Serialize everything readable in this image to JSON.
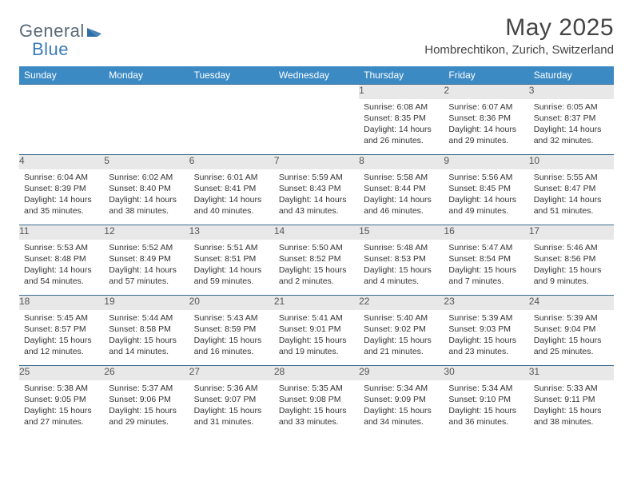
{
  "logo": {
    "text1": "General",
    "text2": "Blue",
    "shape_color": "#2f6fa8"
  },
  "title": "May 2025",
  "location": "Hombrechtikon, Zurich, Switzerland",
  "colors": {
    "header_bg": "#3b8ac4",
    "header_text": "#ffffff",
    "daynum_bg": "#e8e8e8",
    "daynum_text": "#555555",
    "row_border": "#3b6b8f",
    "body_text": "#333333"
  },
  "weekdays": [
    "Sunday",
    "Monday",
    "Tuesday",
    "Wednesday",
    "Thursday",
    "Friday",
    "Saturday"
  ],
  "weeks": [
    [
      null,
      null,
      null,
      null,
      {
        "n": "1",
        "sr": "Sunrise: 6:08 AM",
        "ss": "Sunset: 8:35 PM",
        "dl": "Daylight: 14 hours and 26 minutes."
      },
      {
        "n": "2",
        "sr": "Sunrise: 6:07 AM",
        "ss": "Sunset: 8:36 PM",
        "dl": "Daylight: 14 hours and 29 minutes."
      },
      {
        "n": "3",
        "sr": "Sunrise: 6:05 AM",
        "ss": "Sunset: 8:37 PM",
        "dl": "Daylight: 14 hours and 32 minutes."
      }
    ],
    [
      {
        "n": "4",
        "sr": "Sunrise: 6:04 AM",
        "ss": "Sunset: 8:39 PM",
        "dl": "Daylight: 14 hours and 35 minutes."
      },
      {
        "n": "5",
        "sr": "Sunrise: 6:02 AM",
        "ss": "Sunset: 8:40 PM",
        "dl": "Daylight: 14 hours and 38 minutes."
      },
      {
        "n": "6",
        "sr": "Sunrise: 6:01 AM",
        "ss": "Sunset: 8:41 PM",
        "dl": "Daylight: 14 hours and 40 minutes."
      },
      {
        "n": "7",
        "sr": "Sunrise: 5:59 AM",
        "ss": "Sunset: 8:43 PM",
        "dl": "Daylight: 14 hours and 43 minutes."
      },
      {
        "n": "8",
        "sr": "Sunrise: 5:58 AM",
        "ss": "Sunset: 8:44 PM",
        "dl": "Daylight: 14 hours and 46 minutes."
      },
      {
        "n": "9",
        "sr": "Sunrise: 5:56 AM",
        "ss": "Sunset: 8:45 PM",
        "dl": "Daylight: 14 hours and 49 minutes."
      },
      {
        "n": "10",
        "sr": "Sunrise: 5:55 AM",
        "ss": "Sunset: 8:47 PM",
        "dl": "Daylight: 14 hours and 51 minutes."
      }
    ],
    [
      {
        "n": "11",
        "sr": "Sunrise: 5:53 AM",
        "ss": "Sunset: 8:48 PM",
        "dl": "Daylight: 14 hours and 54 minutes."
      },
      {
        "n": "12",
        "sr": "Sunrise: 5:52 AM",
        "ss": "Sunset: 8:49 PM",
        "dl": "Daylight: 14 hours and 57 minutes."
      },
      {
        "n": "13",
        "sr": "Sunrise: 5:51 AM",
        "ss": "Sunset: 8:51 PM",
        "dl": "Daylight: 14 hours and 59 minutes."
      },
      {
        "n": "14",
        "sr": "Sunrise: 5:50 AM",
        "ss": "Sunset: 8:52 PM",
        "dl": "Daylight: 15 hours and 2 minutes."
      },
      {
        "n": "15",
        "sr": "Sunrise: 5:48 AM",
        "ss": "Sunset: 8:53 PM",
        "dl": "Daylight: 15 hours and 4 minutes."
      },
      {
        "n": "16",
        "sr": "Sunrise: 5:47 AM",
        "ss": "Sunset: 8:54 PM",
        "dl": "Daylight: 15 hours and 7 minutes."
      },
      {
        "n": "17",
        "sr": "Sunrise: 5:46 AM",
        "ss": "Sunset: 8:56 PM",
        "dl": "Daylight: 15 hours and 9 minutes."
      }
    ],
    [
      {
        "n": "18",
        "sr": "Sunrise: 5:45 AM",
        "ss": "Sunset: 8:57 PM",
        "dl": "Daylight: 15 hours and 12 minutes."
      },
      {
        "n": "19",
        "sr": "Sunrise: 5:44 AM",
        "ss": "Sunset: 8:58 PM",
        "dl": "Daylight: 15 hours and 14 minutes."
      },
      {
        "n": "20",
        "sr": "Sunrise: 5:43 AM",
        "ss": "Sunset: 8:59 PM",
        "dl": "Daylight: 15 hours and 16 minutes."
      },
      {
        "n": "21",
        "sr": "Sunrise: 5:41 AM",
        "ss": "Sunset: 9:01 PM",
        "dl": "Daylight: 15 hours and 19 minutes."
      },
      {
        "n": "22",
        "sr": "Sunrise: 5:40 AM",
        "ss": "Sunset: 9:02 PM",
        "dl": "Daylight: 15 hours and 21 minutes."
      },
      {
        "n": "23",
        "sr": "Sunrise: 5:39 AM",
        "ss": "Sunset: 9:03 PM",
        "dl": "Daylight: 15 hours and 23 minutes."
      },
      {
        "n": "24",
        "sr": "Sunrise: 5:39 AM",
        "ss": "Sunset: 9:04 PM",
        "dl": "Daylight: 15 hours and 25 minutes."
      }
    ],
    [
      {
        "n": "25",
        "sr": "Sunrise: 5:38 AM",
        "ss": "Sunset: 9:05 PM",
        "dl": "Daylight: 15 hours and 27 minutes."
      },
      {
        "n": "26",
        "sr": "Sunrise: 5:37 AM",
        "ss": "Sunset: 9:06 PM",
        "dl": "Daylight: 15 hours and 29 minutes."
      },
      {
        "n": "27",
        "sr": "Sunrise: 5:36 AM",
        "ss": "Sunset: 9:07 PM",
        "dl": "Daylight: 15 hours and 31 minutes."
      },
      {
        "n": "28",
        "sr": "Sunrise: 5:35 AM",
        "ss": "Sunset: 9:08 PM",
        "dl": "Daylight: 15 hours and 33 minutes."
      },
      {
        "n": "29",
        "sr": "Sunrise: 5:34 AM",
        "ss": "Sunset: 9:09 PM",
        "dl": "Daylight: 15 hours and 34 minutes."
      },
      {
        "n": "30",
        "sr": "Sunrise: 5:34 AM",
        "ss": "Sunset: 9:10 PM",
        "dl": "Daylight: 15 hours and 36 minutes."
      },
      {
        "n": "31",
        "sr": "Sunrise: 5:33 AM",
        "ss": "Sunset: 9:11 PM",
        "dl": "Daylight: 15 hours and 38 minutes."
      }
    ]
  ]
}
